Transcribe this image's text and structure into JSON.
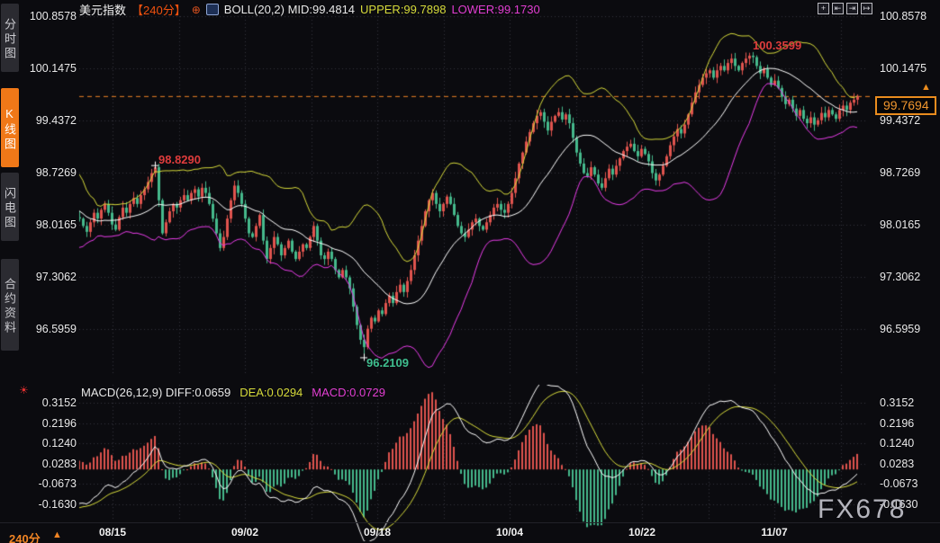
{
  "window": {
    "watermark": "FX678"
  },
  "sidebar": {
    "items": [
      {
        "label": "分时图",
        "active": false
      },
      {
        "label": "K线图",
        "active": true
      },
      {
        "label": "闪电图",
        "active": false
      },
      {
        "label": "合约资料",
        "active": false
      }
    ]
  },
  "topbar": {
    "title": "美元指数",
    "interval": "【240分】",
    "plus_glyph": "⊕",
    "boll": "BOLL(20,2) MID:99.4814",
    "upper": "UPPER:99.7898",
    "lower": "LOWER:99.1730",
    "icons": [
      {
        "name": "crosshair-pan-icon",
        "glyph": "+"
      },
      {
        "name": "compress-left-icon",
        "glyph": "⇤"
      },
      {
        "name": "compress-right-icon",
        "glyph": "⇥"
      },
      {
        "name": "goto-latest-icon",
        "glyph": "↦"
      }
    ]
  },
  "price_tag": {
    "value": "99.7694",
    "arrow": "▲"
  },
  "annotations": {
    "local_high": "98.8290",
    "period_high": "100.3599",
    "period_low": "96.2109"
  },
  "macd_panel": {
    "icon_glyph": "☀",
    "label_diff": "MACD(26,12,9) DIFF:0.0659",
    "label_dea": "DEA:0.0294",
    "label_macd": "MACD:0.0729"
  },
  "bottom": {
    "interval": "240分",
    "arrow": "▲"
  },
  "colors": {
    "up": "#e0544e",
    "down": "#45b98c",
    "boll_upper": "#d6da3a",
    "boll_mid": "#ffffff",
    "boll_lower": "#e93ce9",
    "macd_diff": "#ffffff",
    "macd_dea": "#d6da3a",
    "accent": "#f08424",
    "grid": "#34343c",
    "annotation_high": "#dd3c3c",
    "annotation_low": "#3fbf8f"
  },
  "chart_data": {
    "type": "candlestick",
    "title": "美元指数 240分 K线图 + BOLL(20,2) + MACD(26,12,9)",
    "x_labels": [
      "08/15",
      "09/02",
      "09/18",
      "10/04",
      "10/22",
      "11/07"
    ],
    "y_tick_labels": [
      "100.8578",
      "100.1475",
      "99.4372",
      "98.7269",
      "98.0165",
      "97.3062",
      "96.5959"
    ],
    "macd_tick_labels": [
      "0.3152",
      "0.2196",
      "0.1240",
      "0.0283",
      "-0.0673",
      "-0.1630"
    ],
    "ylim": [
      96.5959,
      100.8578
    ],
    "macd_ylim": [
      -0.163,
      0.3152
    ],
    "last_price": 99.7694,
    "period_high": 100.3599,
    "period_low": 96.2109,
    "local_high": 98.829,
    "indicators": {
      "boll": {
        "period": 20,
        "dev": 2,
        "mid": 99.4814,
        "upper": 99.7898,
        "lower": 99.173
      },
      "macd": {
        "fast": 26,
        "slow": 12,
        "signal": 9,
        "diff": 0.0659,
        "dea": 0.0294,
        "macd": 0.0729
      }
    },
    "pre_closes": [
      98.85,
      98.7,
      98.78,
      98.55,
      98.4,
      98.5,
      98.28,
      98.12,
      98.22,
      98.0,
      97.9,
      98.02,
      97.88,
      97.95,
      98.1,
      98.2,
      98.06,
      98.14,
      98.08,
      98.12
    ],
    "closes": [
      98.1,
      98.0,
      97.92,
      98.05,
      98.18,
      98.1,
      98.22,
      98.3,
      98.18,
      98.02,
      97.95,
      98.12,
      98.25,
      98.18,
      98.3,
      98.38,
      98.3,
      98.42,
      98.5,
      98.6,
      98.72,
      98.8,
      98.35,
      97.9,
      98.05,
      98.2,
      98.3,
      98.25,
      98.35,
      98.42,
      98.35,
      98.45,
      98.5,
      98.4,
      98.52,
      98.45,
      98.3,
      98.1,
      97.9,
      97.7,
      97.85,
      98.1,
      98.35,
      98.55,
      98.45,
      98.3,
      98.1,
      97.9,
      97.85,
      98.0,
      98.15,
      97.8,
      97.55,
      97.7,
      97.85,
      97.75,
      97.6,
      97.7,
      97.8,
      97.65,
      97.55,
      97.65,
      97.75,
      97.7,
      97.85,
      98.0,
      97.8,
      97.6,
      97.55,
      97.65,
      97.55,
      97.4,
      97.3,
      97.4,
      97.3,
      97.15,
      96.9,
      96.65,
      96.45,
      96.35,
      96.6,
      96.75,
      96.7,
      96.85,
      96.8,
      96.95,
      97.05,
      96.95,
      97.1,
      97.2,
      97.1,
      97.25,
      97.4,
      97.6,
      97.8,
      98.0,
      98.2,
      98.35,
      98.45,
      98.3,
      98.2,
      98.3,
      98.4,
      98.3,
      98.15,
      98.0,
      97.9,
      97.85,
      97.95,
      98.05,
      98.1,
      98.0,
      97.95,
      98.05,
      98.15,
      98.25,
      98.3,
      98.22,
      98.18,
      98.3,
      98.45,
      98.65,
      98.85,
      99.0,
      99.15,
      99.28,
      99.4,
      99.5,
      99.55,
      99.42,
      99.3,
      99.42,
      99.5,
      99.55,
      99.45,
      99.52,
      99.4,
      99.2,
      99.0,
      98.85,
      98.72,
      98.68,
      98.8,
      98.7,
      98.58,
      98.52,
      98.65,
      98.78,
      98.7,
      98.82,
      98.92,
      99.02,
      99.08,
      99.12,
      99.02,
      98.95,
      99.05,
      98.98,
      98.88,
      98.72,
      98.62,
      98.7,
      98.82,
      98.95,
      99.1,
      99.22,
      99.32,
      99.26,
      99.38,
      99.52,
      99.68,
      99.82,
      99.92,
      100.02,
      100.08,
      100.12,
      100.02,
      100.12,
      100.18,
      100.12,
      100.22,
      100.28,
      100.18,
      100.12,
      100.22,
      100.28,
      100.32,
      100.3,
      100.18,
      100.08,
      100.14,
      100.02,
      99.92,
      99.98,
      99.88,
      99.76,
      99.66,
      99.72,
      99.6,
      99.5,
      99.58,
      99.46,
      99.4,
      99.48,
      99.38,
      99.44,
      99.54,
      99.48,
      99.58,
      99.52,
      99.46,
      99.58,
      99.64,
      99.58,
      99.68,
      99.72,
      99.7694
    ]
  }
}
